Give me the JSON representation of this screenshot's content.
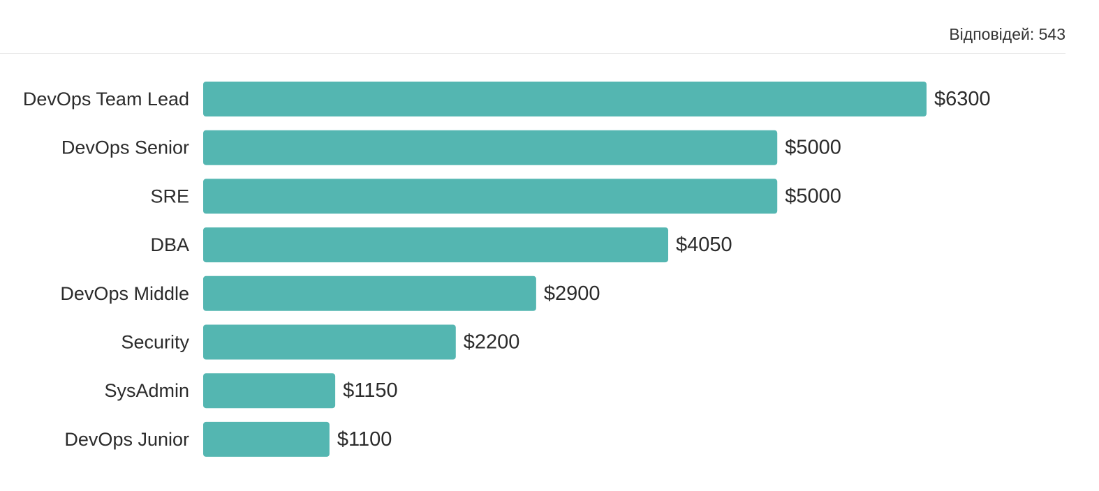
{
  "header": {
    "responses_label": "Відповідей: 543"
  },
  "colors": {
    "bar": "#54b6b1",
    "text": "#2b2b2b",
    "divider": "#e6e6e6"
  },
  "chart_data": {
    "type": "bar",
    "orientation": "horizontal",
    "categories": [
      "DevOps Team Lead",
      "DevOps Senior",
      "SRE",
      "DBA",
      "DevOps Middle",
      "Security",
      "SysAdmin",
      "DevOps Junior"
    ],
    "values": [
      6300,
      5000,
      5000,
      4050,
      2900,
      2200,
      1150,
      1100
    ],
    "value_labels": [
      "$6300",
      "$5000",
      "$5000",
      "$4050",
      "$2900",
      "$2200",
      "$1150",
      "$1100"
    ],
    "xlim": [
      0,
      6300
    ],
    "grid": false,
    "legend": "none"
  }
}
